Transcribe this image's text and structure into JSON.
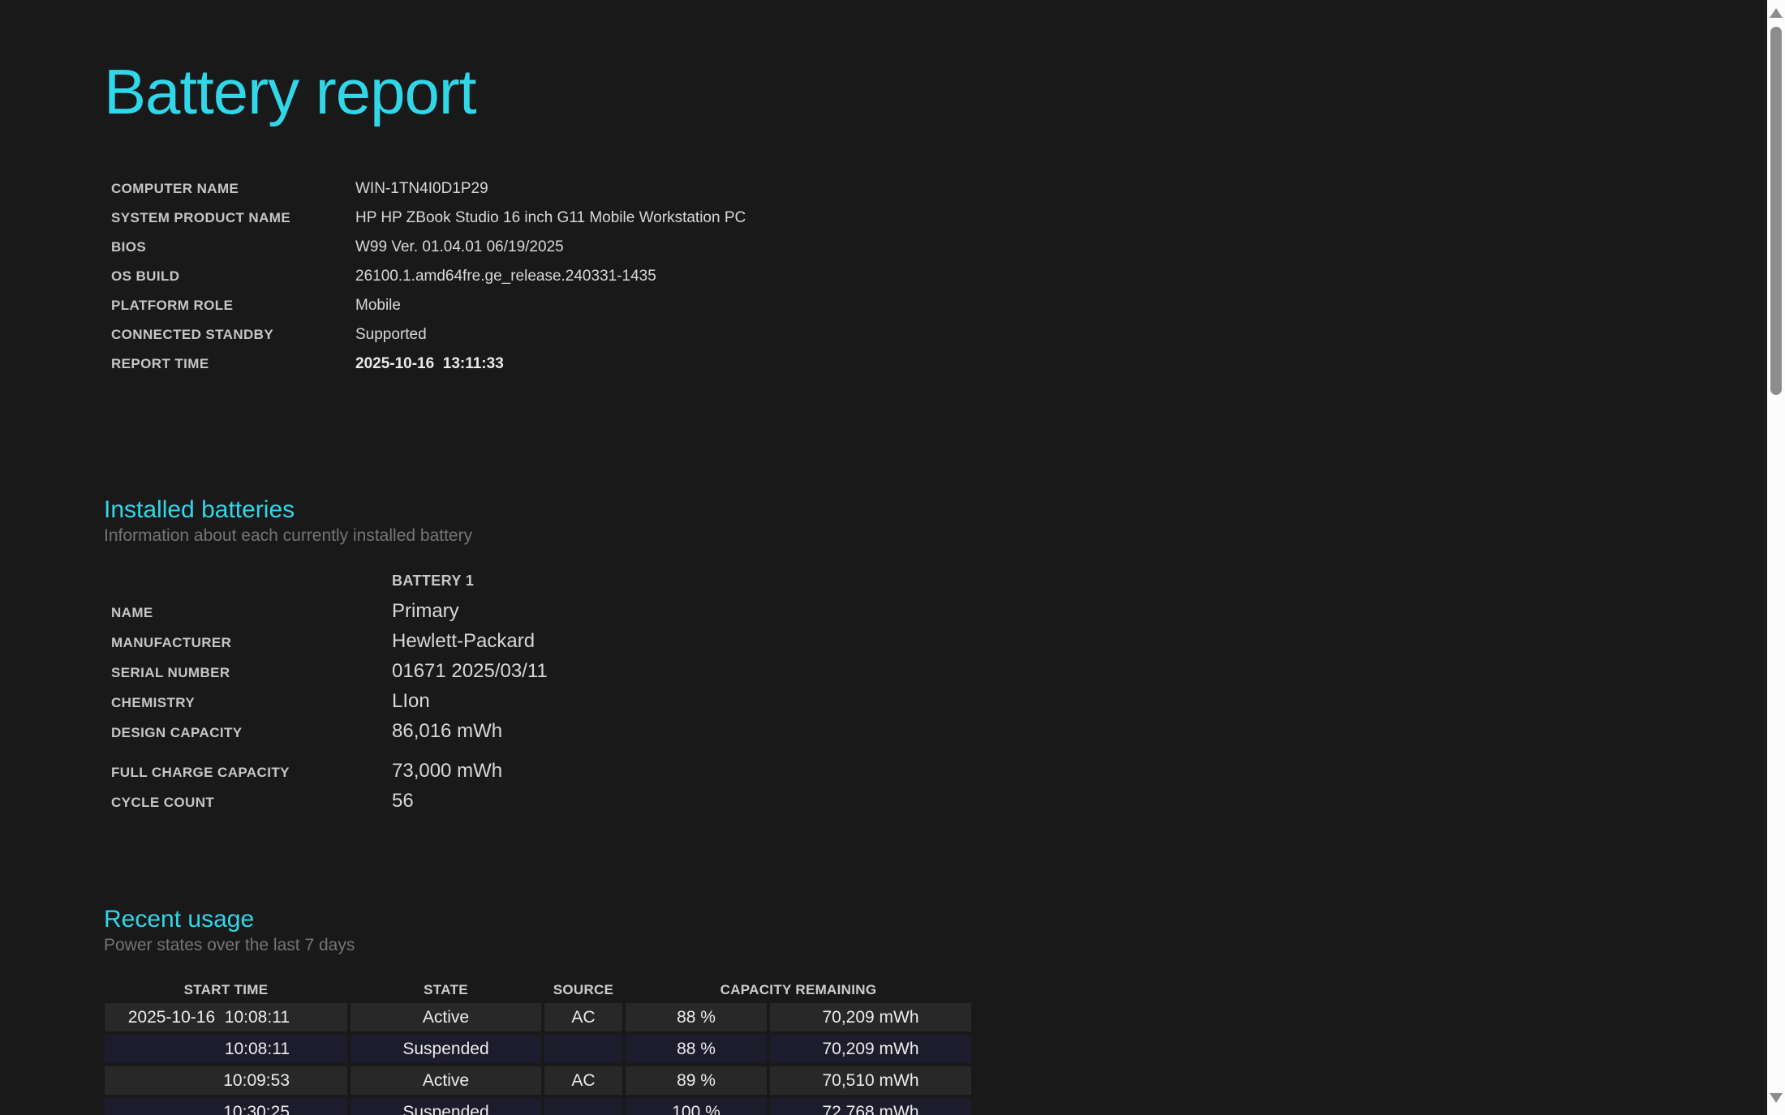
{
  "page": {
    "title": "Battery report",
    "accent_color": "#2fd7e9",
    "background_color": "#191919"
  },
  "system_info": {
    "rows": [
      {
        "label": "COMPUTER NAME",
        "value": "WIN-1TN4I0D1P29",
        "bold": false
      },
      {
        "label": "SYSTEM PRODUCT NAME",
        "value": "HP HP ZBook Studio 16 inch G11 Mobile Workstation PC",
        "bold": false
      },
      {
        "label": "BIOS",
        "value": "W99 Ver. 01.04.01 06/19/2025",
        "bold": false
      },
      {
        "label": "OS BUILD",
        "value": "26100.1.amd64fre.ge_release.240331-1435",
        "bold": false
      },
      {
        "label": "PLATFORM ROLE",
        "value": "Mobile",
        "bold": false
      },
      {
        "label": "CONNECTED STANDBY",
        "value": "Supported",
        "bold": false
      },
      {
        "label": "REPORT TIME",
        "value": "2025-10-16  13:11:33",
        "bold": true
      }
    ]
  },
  "installed_batteries": {
    "heading": "Installed batteries",
    "subtitle": "Information about each currently installed battery",
    "column_header": "BATTERY 1",
    "rows": [
      {
        "label": "NAME",
        "value": "Primary"
      },
      {
        "label": "MANUFACTURER",
        "value": "Hewlett-Packard"
      },
      {
        "label": "SERIAL NUMBER",
        "value": "01671 2025/03/11"
      },
      {
        "label": "CHEMISTRY",
        "value": "LIon"
      },
      {
        "label": "DESIGN CAPACITY",
        "value": "86,016 mWh"
      }
    ],
    "rows_secondary": [
      {
        "label": "FULL CHARGE CAPACITY",
        "value": "73,000 mWh"
      },
      {
        "label": "CYCLE COUNT",
        "value": "56"
      }
    ]
  },
  "recent_usage": {
    "heading": "Recent usage",
    "subtitle": "Power states over the last 7 days",
    "headers": {
      "start_time": "START TIME",
      "state": "STATE",
      "source": "SOURCE",
      "capacity_remaining": "CAPACITY REMAINING"
    },
    "rows": [
      {
        "start_time": "2025-10-16  10:08:11",
        "state": "Active",
        "source": "AC",
        "percent": "88 %",
        "mwh": "70,209 mWh",
        "variant": "active"
      },
      {
        "start_time": "10:08:11",
        "state": "Suspended",
        "source": "",
        "percent": "88 %",
        "mwh": "70,209 mWh",
        "variant": "suspended"
      },
      {
        "start_time": "10:09:53",
        "state": "Active",
        "source": "AC",
        "percent": "89 %",
        "mwh": "70,510 mWh",
        "variant": "active"
      },
      {
        "start_time": "10:30:25",
        "state": "Suspended",
        "source": "",
        "percent": "100 %",
        "mwh": "72,768 mWh",
        "variant": "suspended"
      }
    ],
    "row_colors": {
      "active": "#282828",
      "suspended": "#1d1c2d"
    }
  },
  "scrollbar": {
    "track_color": "#fcfcfc",
    "thumb_color": "#8d8d8d",
    "up_arrow_icon": "scroll-up-arrow",
    "down_arrow_icon": "scroll-down-arrow"
  }
}
